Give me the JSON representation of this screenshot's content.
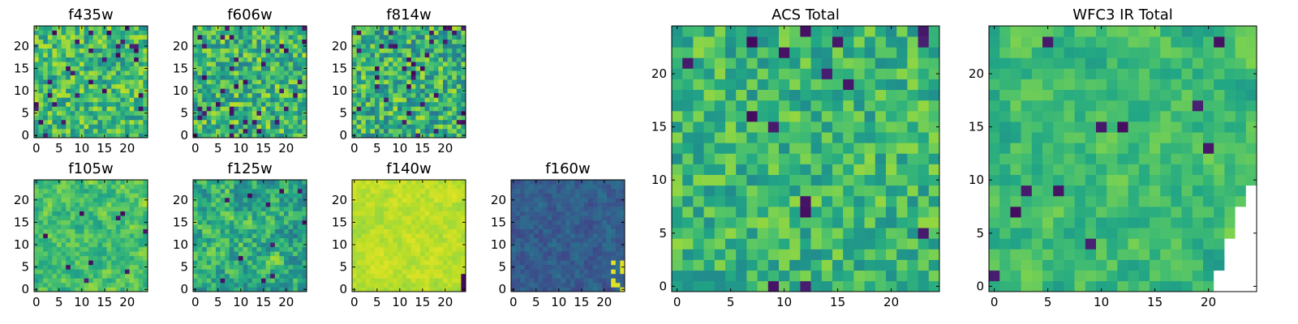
{
  "figure": {
    "colormap": "viridis",
    "background": "#ffffff"
  },
  "chart_data": [
    {
      "type": "heatmap",
      "title": "f435w",
      "xlim": [
        0,
        25
      ],
      "ylim": [
        0,
        25
      ],
      "xticks": [
        0,
        5,
        10,
        15,
        20
      ],
      "yticks": [
        0,
        5,
        10,
        15,
        20
      ],
      "grid": false,
      "legend": "none",
      "seed": 11,
      "mean": 0.68,
      "spread": 0.22,
      "smooth": 0.0,
      "dark_fraction": 0.05,
      "missing": "none",
      "bright_corner": "none"
    },
    {
      "type": "heatmap",
      "title": "f606w",
      "xlim": [
        0,
        25
      ],
      "ylim": [
        0,
        25
      ],
      "xticks": [
        0,
        5,
        10,
        15,
        20
      ],
      "yticks": [
        0,
        5,
        10,
        15,
        20
      ],
      "grid": false,
      "legend": "none",
      "seed": 23,
      "mean": 0.66,
      "spread": 0.24,
      "smooth": 0.0,
      "dark_fraction": 0.05,
      "missing": "none",
      "bright_corner": "none"
    },
    {
      "type": "heatmap",
      "title": "f814w",
      "xlim": [
        0,
        25
      ],
      "ylim": [
        0,
        25
      ],
      "xticks": [
        0,
        5,
        10,
        15,
        20
      ],
      "yticks": [
        0,
        5,
        10,
        15,
        20
      ],
      "grid": false,
      "legend": "none",
      "seed": 37,
      "mean": 0.64,
      "spread": 0.25,
      "smooth": 0.0,
      "dark_fraction": 0.06,
      "missing": "none",
      "bright_corner": "none"
    },
    {
      "type": "heatmap",
      "title": "f105w",
      "xlim": [
        0,
        25
      ],
      "ylim": [
        0,
        25
      ],
      "xticks": [
        0,
        5,
        10,
        15,
        20
      ],
      "yticks": [
        0,
        5,
        10,
        15,
        20
      ],
      "grid": false,
      "legend": "none",
      "seed": 41,
      "mean": 0.7,
      "spread": 0.14,
      "smooth": 0.6,
      "dark_fraction": 0.01,
      "missing": "none",
      "bright_corner": "none"
    },
    {
      "type": "heatmap",
      "title": "f125w",
      "xlim": [
        0,
        25
      ],
      "ylim": [
        0,
        25
      ],
      "xticks": [
        0,
        5,
        10,
        15,
        20
      ],
      "yticks": [
        0,
        5,
        10,
        15,
        20
      ],
      "grid": false,
      "legend": "none",
      "seed": 53,
      "mean": 0.62,
      "spread": 0.18,
      "smooth": 0.5,
      "dark_fraction": 0.02,
      "missing": "none",
      "bright_corner": "none"
    },
    {
      "type": "heatmap",
      "title": "f140w",
      "xlim": [
        0,
        25
      ],
      "ylim": [
        0,
        25
      ],
      "xticks": [
        0,
        5,
        10,
        15,
        20
      ],
      "yticks": [
        0,
        5,
        10,
        15,
        20
      ],
      "grid": false,
      "legend": "none",
      "seed": 67,
      "mean": 0.9,
      "spread": 0.05,
      "smooth": 0.6,
      "dark_fraction": 0.0,
      "missing": "none",
      "bright_corner": "bottom-right-dark"
    },
    {
      "type": "heatmap",
      "title": "f160w",
      "xlim": [
        0,
        25
      ],
      "ylim": [
        0,
        25
      ],
      "xticks": [
        0,
        5,
        10,
        15,
        20
      ],
      "yticks": [
        0,
        5,
        10,
        15,
        20
      ],
      "grid": false,
      "legend": "none",
      "seed": 79,
      "mean": 0.3,
      "spread": 0.07,
      "smooth": 0.5,
      "dark_fraction": 0.0,
      "missing": "none",
      "bright_corner": "bottom-right-bright"
    },
    {
      "type": "heatmap",
      "title": "ACS Total",
      "xlim": [
        0,
        25
      ],
      "ylim": [
        0,
        25
      ],
      "xticks": [
        0,
        5,
        10,
        15,
        20
      ],
      "yticks": [
        0,
        5,
        10,
        15,
        20
      ],
      "grid": false,
      "legend": "none",
      "seed": 97,
      "mean": 0.66,
      "spread": 0.18,
      "smooth": 0.0,
      "dark_fraction": 0.03,
      "missing": "none",
      "bright_corner": "none"
    },
    {
      "type": "heatmap",
      "title": "WFC3 IR Total",
      "xlim": [
        0,
        25
      ],
      "ylim": [
        0,
        25
      ],
      "xticks": [
        0,
        5,
        10,
        15,
        20
      ],
      "yticks": [
        0,
        5,
        10,
        15,
        20
      ],
      "grid": false,
      "legend": "none",
      "seed": 113,
      "mean": 0.68,
      "spread": 0.12,
      "smooth": 0.6,
      "dark_fraction": 0.02,
      "missing": "bottom-right-triangle",
      "bright_corner": "none"
    }
  ]
}
